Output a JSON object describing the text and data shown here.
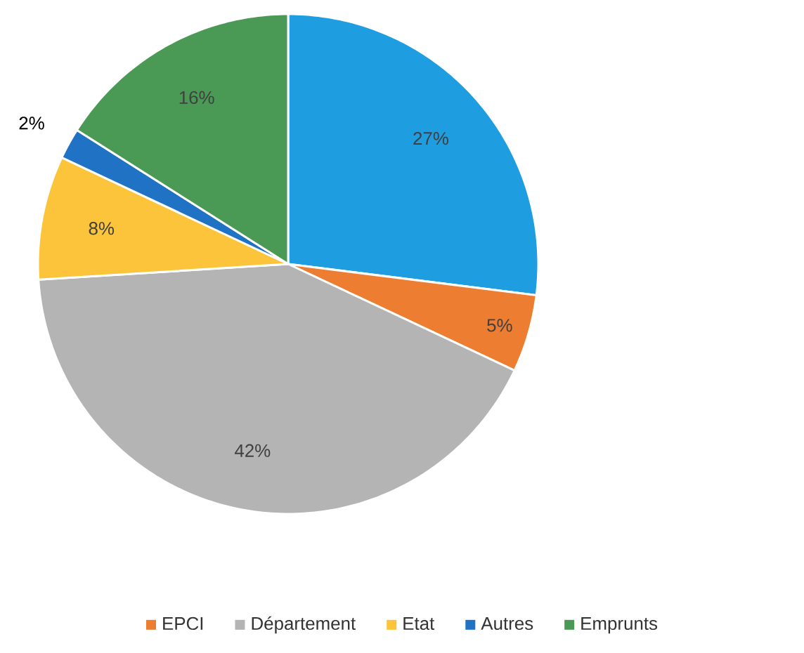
{
  "chart_data": {
    "type": "pie",
    "categories": [
      null,
      "EPCI",
      "Département",
      "Etat",
      "Autres",
      "Emprunts"
    ],
    "values": [
      27,
      5,
      42,
      8,
      2,
      16
    ],
    "value_labels": [
      "27%",
      "5%",
      "42%",
      "8%",
      "2%",
      "16%"
    ],
    "colors": [
      "#1e9ee0",
      "#ed7d31",
      "#b4b4b4",
      "#fbc43a",
      "#1f72c4",
      "#4a9a55"
    ],
    "legend": "bottom"
  }
}
